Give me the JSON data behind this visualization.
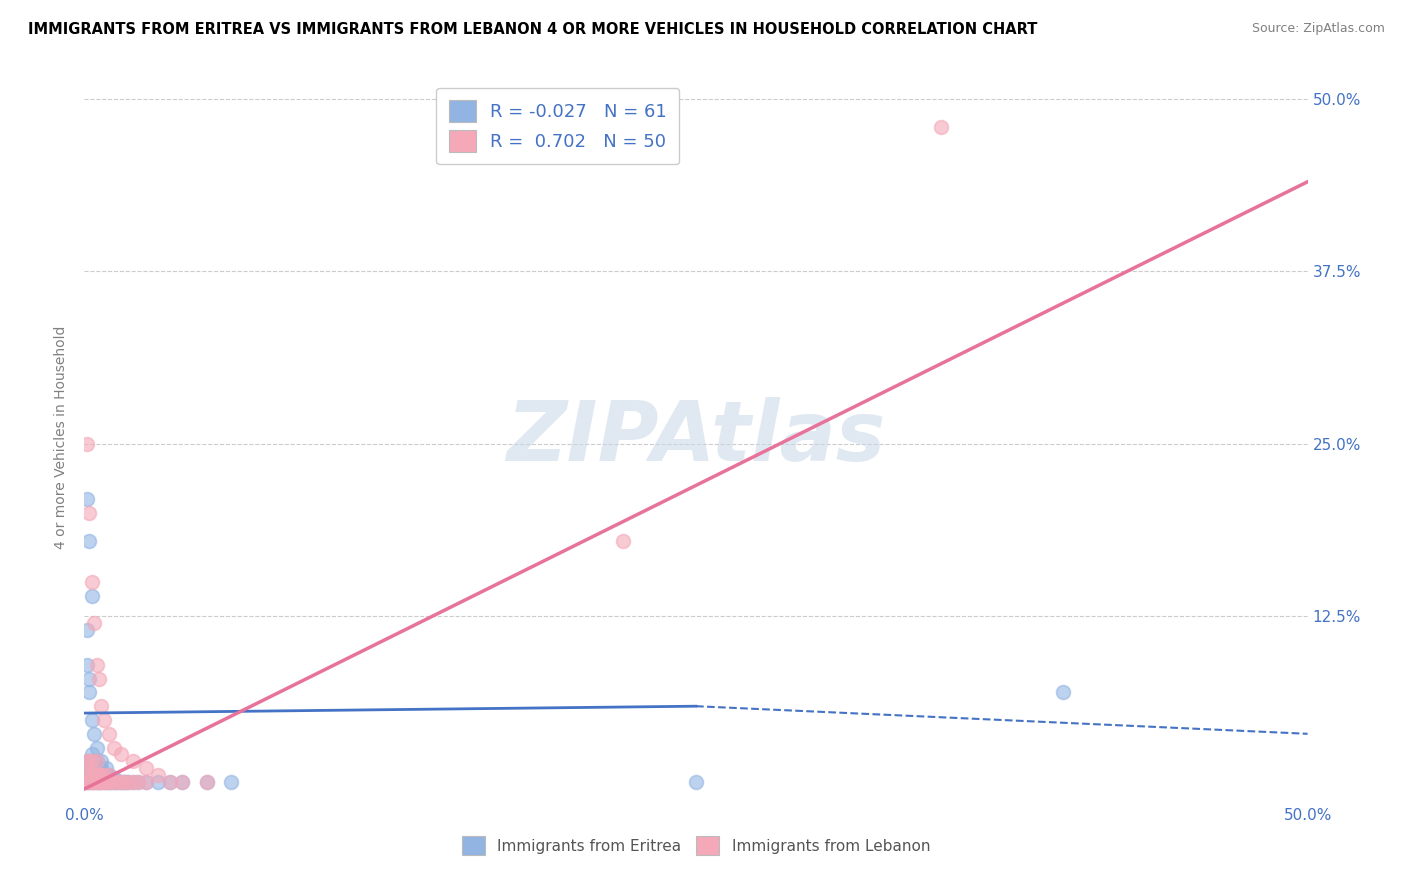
{
  "title": "IMMIGRANTS FROM ERITREA VS IMMIGRANTS FROM LEBANON 4 OR MORE VEHICLES IN HOUSEHOLD CORRELATION CHART",
  "source": "Source: ZipAtlas.com",
  "ylabel": "4 or more Vehicles in Household",
  "xlim": [
    0.0,
    0.5
  ],
  "ylim": [
    -0.01,
    0.52
  ],
  "xticks": [
    0.0,
    0.5
  ],
  "yticks": [
    0.125,
    0.25,
    0.375,
    0.5
  ],
  "xticklabels": [
    "0.0%",
    "50.0%"
  ],
  "yticklabels": [
    "12.5%",
    "25.0%",
    "37.5%",
    "50.0%"
  ],
  "R_eritrea": -0.027,
  "N_eritrea": 61,
  "R_lebanon": 0.702,
  "N_lebanon": 50,
  "color_eritrea": "#92b4e3",
  "color_lebanon": "#f4a8b8",
  "line_color_eritrea": "#4472c4",
  "line_color_lebanon": "#e8739a",
  "watermark": "ZIPAtlas",
  "watermark_color": "#c8d8e8",
  "legend_label_eritrea": "Immigrants from Eritrea",
  "legend_label_lebanon": "Immigrants from Lebanon",
  "eritrea_scatter_x": [
    0.001,
    0.001,
    0.001,
    0.002,
    0.002,
    0.002,
    0.002,
    0.003,
    0.003,
    0.003,
    0.003,
    0.004,
    0.004,
    0.004,
    0.005,
    0.005,
    0.005,
    0.006,
    0.006,
    0.006,
    0.007,
    0.007,
    0.007,
    0.008,
    0.008,
    0.009,
    0.009,
    0.01,
    0.01,
    0.011,
    0.011,
    0.012,
    0.012,
    0.013,
    0.014,
    0.015,
    0.016,
    0.017,
    0.018,
    0.02,
    0.022,
    0.025,
    0.03,
    0.035,
    0.04,
    0.05,
    0.06,
    0.001,
    0.002,
    0.003,
    0.001,
    0.002,
    0.001,
    0.002,
    0.003,
    0.004,
    0.005,
    0.007,
    0.009,
    0.4,
    0.25
  ],
  "eritrea_scatter_y": [
    0.005,
    0.01,
    0.02,
    0.005,
    0.01,
    0.015,
    0.02,
    0.005,
    0.01,
    0.015,
    0.025,
    0.005,
    0.01,
    0.02,
    0.005,
    0.01,
    0.02,
    0.005,
    0.01,
    0.015,
    0.005,
    0.01,
    0.015,
    0.005,
    0.01,
    0.005,
    0.01,
    0.005,
    0.01,
    0.005,
    0.008,
    0.005,
    0.008,
    0.005,
    0.005,
    0.005,
    0.005,
    0.005,
    0.005,
    0.005,
    0.005,
    0.005,
    0.005,
    0.005,
    0.005,
    0.005,
    0.005,
    0.21,
    0.18,
    0.14,
    0.09,
    0.08,
    0.115,
    0.07,
    0.05,
    0.04,
    0.03,
    0.02,
    0.015,
    0.07,
    0.005
  ],
  "lebanon_scatter_x": [
    0.001,
    0.001,
    0.001,
    0.002,
    0.002,
    0.002,
    0.003,
    0.003,
    0.003,
    0.004,
    0.004,
    0.005,
    0.005,
    0.005,
    0.006,
    0.006,
    0.007,
    0.007,
    0.008,
    0.008,
    0.009,
    0.01,
    0.01,
    0.012,
    0.013,
    0.015,
    0.016,
    0.018,
    0.02,
    0.022,
    0.025,
    0.03,
    0.035,
    0.04,
    0.05,
    0.001,
    0.002,
    0.003,
    0.004,
    0.005,
    0.006,
    0.007,
    0.008,
    0.01,
    0.012,
    0.015,
    0.02,
    0.025,
    0.35,
    0.22
  ],
  "lebanon_scatter_y": [
    0.005,
    0.01,
    0.02,
    0.005,
    0.01,
    0.02,
    0.005,
    0.01,
    0.02,
    0.005,
    0.01,
    0.005,
    0.01,
    0.02,
    0.005,
    0.01,
    0.005,
    0.01,
    0.005,
    0.01,
    0.005,
    0.005,
    0.01,
    0.005,
    0.005,
    0.005,
    0.005,
    0.005,
    0.005,
    0.005,
    0.005,
    0.01,
    0.005,
    0.005,
    0.005,
    0.25,
    0.2,
    0.15,
    0.12,
    0.09,
    0.08,
    0.06,
    0.05,
    0.04,
    0.03,
    0.025,
    0.02,
    0.015,
    0.48,
    0.18
  ],
  "eritrea_line": {
    "x0": 0.0,
    "y0": 0.055,
    "x1": 0.25,
    "y1": 0.06,
    "x1_dash": 0.5,
    "y1_dash": 0.04
  },
  "lebanon_line": {
    "x0": 0.0,
    "y0": 0.0,
    "x1": 0.5,
    "y1": 0.44
  }
}
